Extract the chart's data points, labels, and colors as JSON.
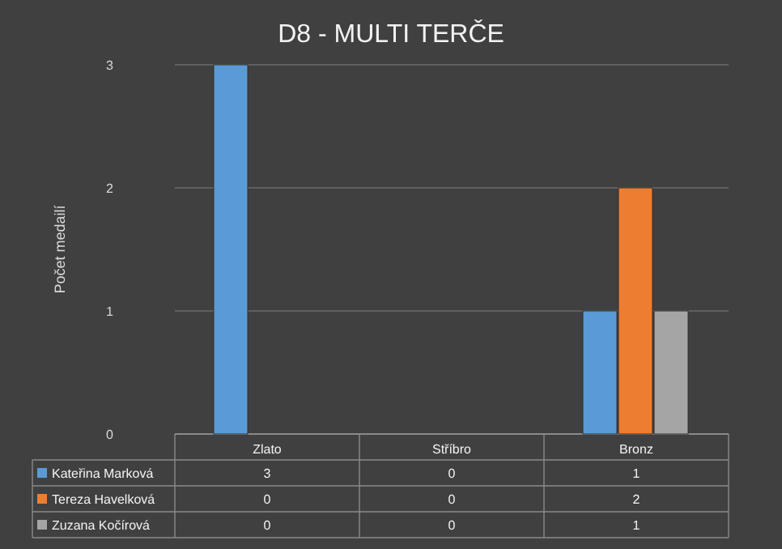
{
  "chart_data": {
    "type": "bar",
    "title": "D8 - MULTI TERČE",
    "ylabel": "Počet medailí",
    "categories": [
      "Zlato",
      "Stříbro",
      "Bronz"
    ],
    "series": [
      {
        "name": "Kateřina Marková",
        "color": "#5b9bd5",
        "values": [
          3,
          0,
          1
        ]
      },
      {
        "name": "Tereza Havelková",
        "color": "#ed7d31",
        "values": [
          0,
          0,
          2
        ]
      },
      {
        "name": "Zuzana Kočírová",
        "color": "#a5a5a5",
        "values": [
          0,
          0,
          1
        ]
      }
    ],
    "ylim": [
      0,
      3
    ],
    "yticks": [
      0,
      1,
      2,
      3
    ],
    "grid": "y",
    "legend": "bottom",
    "data_labels": true
  }
}
